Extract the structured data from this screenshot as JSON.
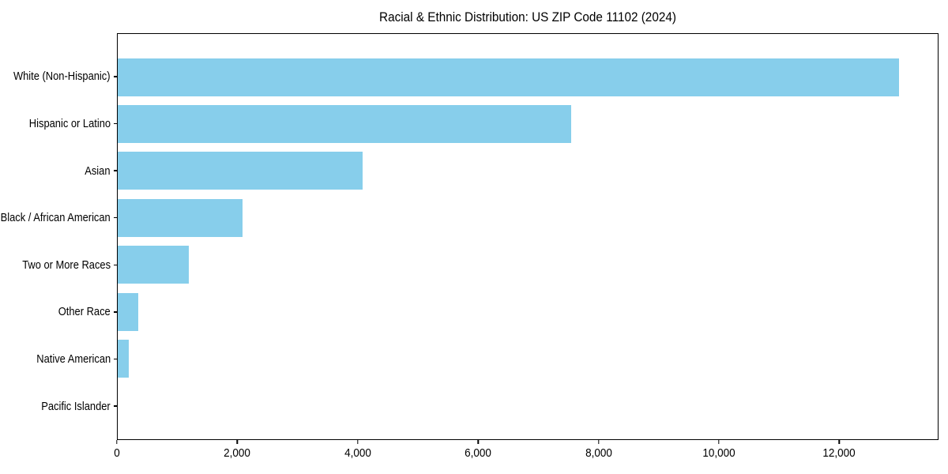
{
  "title": "Racial & Ethnic Distribution: US ZIP Code 11102 (2024)",
  "chart_data": {
    "type": "bar",
    "orientation": "horizontal",
    "title": "Racial & Ethnic Distribution: US ZIP Code 11102 (2024)",
    "categories": [
      "White (Non-Hispanic)",
      "Hispanic or Latino",
      "Asian",
      "Black / African American",
      "Two or More Races",
      "Other Race",
      "Native American",
      "Pacific Islander"
    ],
    "values": [
      13000,
      7550,
      4080,
      2080,
      1180,
      340,
      190,
      0
    ],
    "xlabel": "",
    "ylabel": "",
    "xlim": [
      0,
      13650
    ],
    "x_ticks": [
      0,
      2000,
      4000,
      6000,
      8000,
      10000,
      12000
    ],
    "x_tick_labels": [
      "0",
      "2,000",
      "4,000",
      "6,000",
      "8,000",
      "10,000",
      "12,000"
    ],
    "bar_color": "#87CEEB",
    "background_color": "#ffffff",
    "grid": false,
    "legend": null
  }
}
